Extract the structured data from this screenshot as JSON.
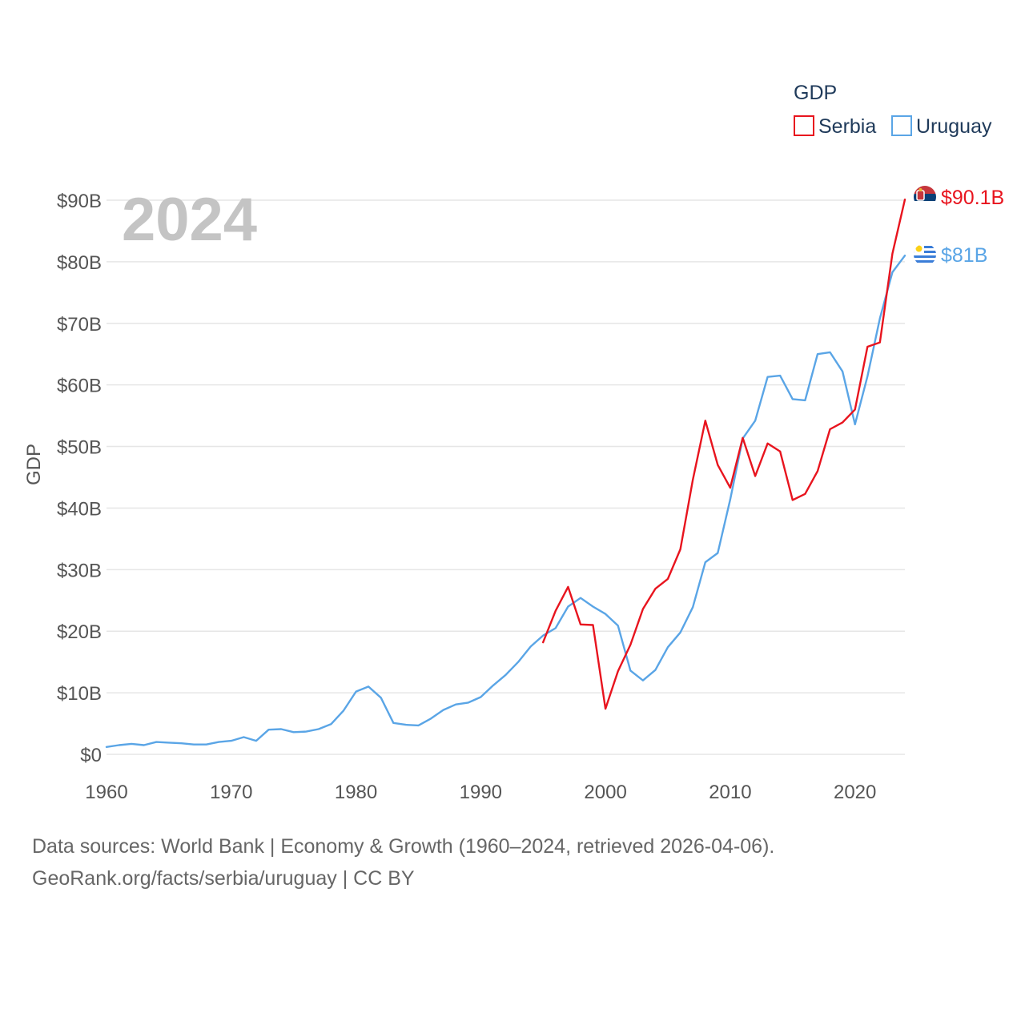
{
  "chart_data": {
    "type": "line",
    "title": "GDP",
    "legend_title": "GDP",
    "ylabel": "GDP",
    "xlabel": "",
    "current_year": "2024",
    "xlim": [
      1960,
      2024
    ],
    "ylim": [
      0,
      90
    ],
    "x_ticks": [
      "1960",
      "1970",
      "1980",
      "1990",
      "2000",
      "2010",
      "2020"
    ],
    "y_ticks": [
      "$0",
      "$10B",
      "$20B",
      "$30B",
      "$40B",
      "$50B",
      "$60B",
      "$70B",
      "$80B",
      "$90B"
    ],
    "units": "billions USD",
    "series": [
      {
        "name": "Serbia",
        "color": "#e8141e",
        "end_label": "$90.1B",
        "flag_icon": "serbia-flag-icon",
        "x": [
          1995,
          1996,
          1997,
          1998,
          1999,
          2000,
          2001,
          2002,
          2003,
          2004,
          2005,
          2006,
          2007,
          2008,
          2009,
          2010,
          2011,
          2012,
          2013,
          2014,
          2015,
          2016,
          2017,
          2018,
          2019,
          2020,
          2021,
          2022,
          2023,
          2024
        ],
        "values": [
          18.2,
          23.3,
          27.2,
          21.1,
          21.0,
          7.4,
          13.5,
          17.8,
          23.6,
          26.9,
          28.5,
          33.3,
          44.6,
          54.2,
          47.0,
          43.3,
          51.4,
          45.2,
          50.5,
          49.2,
          41.3,
          42.3,
          46.0,
          52.8,
          53.9,
          56.0,
          66.2,
          66.9,
          81.3,
          90.1
        ]
      },
      {
        "name": "Uruguay",
        "color": "#5aa5e6",
        "end_label": "$81B",
        "flag_icon": "uruguay-flag-icon",
        "x": [
          1960,
          1961,
          1962,
          1963,
          1964,
          1965,
          1966,
          1967,
          1968,
          1969,
          1970,
          1971,
          1972,
          1973,
          1974,
          1975,
          1976,
          1977,
          1978,
          1979,
          1980,
          1981,
          1982,
          1983,
          1984,
          1985,
          1986,
          1987,
          1988,
          1989,
          1990,
          1991,
          1992,
          1993,
          1994,
          1995,
          1996,
          1997,
          1998,
          1999,
          2000,
          2001,
          2002,
          2003,
          2004,
          2005,
          2006,
          2007,
          2008,
          2009,
          2010,
          2011,
          2012,
          2013,
          2014,
          2015,
          2016,
          2017,
          2018,
          2019,
          2020,
          2021,
          2022,
          2023,
          2024
        ],
        "values": [
          1.2,
          1.5,
          1.7,
          1.5,
          2.0,
          1.9,
          1.8,
          1.6,
          1.6,
          2.0,
          2.2,
          2.8,
          2.2,
          4.0,
          4.1,
          3.6,
          3.7,
          4.1,
          4.9,
          7.1,
          10.2,
          11.0,
          9.2,
          5.1,
          4.8,
          4.7,
          5.8,
          7.2,
          8.1,
          8.4,
          9.3,
          11.2,
          12.9,
          15.0,
          17.5,
          19.3,
          20.5,
          24.0,
          25.4,
          24.0,
          22.8,
          20.9,
          13.6,
          12.0,
          13.7,
          17.4,
          19.8,
          23.9,
          31.2,
          32.7,
          41.4,
          51.3,
          54.2,
          61.3,
          61.5,
          57.7,
          57.5,
          65.0,
          65.3,
          62.2,
          53.6,
          61.4,
          70.8,
          78.3,
          81.0
        ]
      }
    ]
  },
  "footer": {
    "line1": "Data sources: World Bank | Economy & Growth (1960–2024, retrieved 2026-04-06).",
    "line2": "GeoRank.org/facts/serbia/uruguay | CC BY"
  }
}
